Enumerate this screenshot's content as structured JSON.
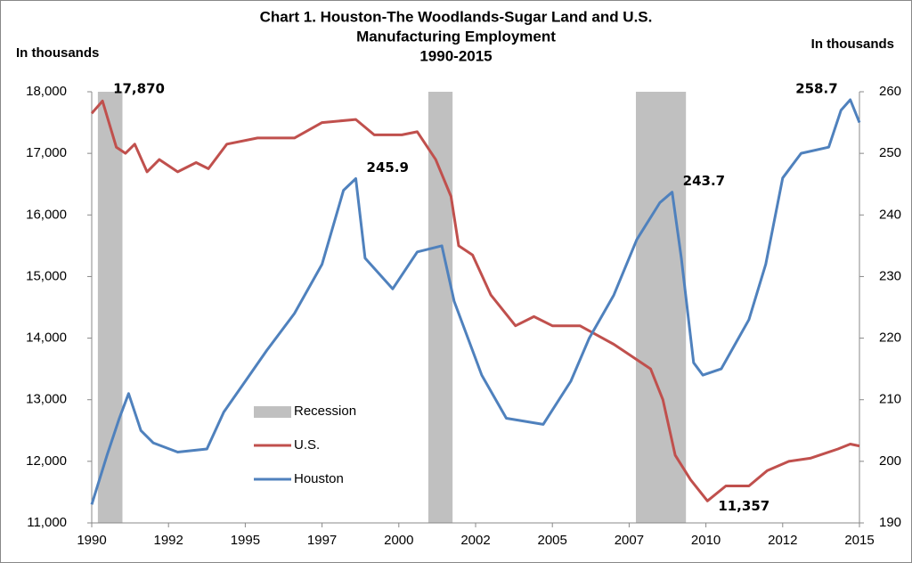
{
  "chart_data": {
    "type": "line",
    "title": [
      "Chart 1. Houston-The Woodlands-Sugar Land and U.S.",
      "Manufacturing Employment",
      "1990-2015"
    ],
    "ylabel": "In thousands",
    "y2label": "In thousands",
    "xlim": [
      1990,
      2015
    ],
    "xticks": [
      {
        "value": 1990,
        "label": "1990"
      },
      {
        "value": 1992.5,
        "label": "1992"
      },
      {
        "value": 1995,
        "label": "1995"
      },
      {
        "value": 1997.5,
        "label": "1997"
      },
      {
        "value": 2000,
        "label": "2000"
      },
      {
        "value": 2002.5,
        "label": "2002"
      },
      {
        "value": 2005,
        "label": "2005"
      },
      {
        "value": 2007.5,
        "label": "2007"
      },
      {
        "value": 2010,
        "label": "2010"
      },
      {
        "value": 2012.5,
        "label": "2012"
      },
      {
        "value": 2015,
        "label": "2015"
      }
    ],
    "ylim": [
      11000,
      18000
    ],
    "yticks": [
      {
        "value": 11000,
        "label": "11,000"
      },
      {
        "value": 12000,
        "label": "12,000"
      },
      {
        "value": 13000,
        "label": "13,000"
      },
      {
        "value": 14000,
        "label": "14,000"
      },
      {
        "value": 15000,
        "label": "15,000"
      },
      {
        "value": 16000,
        "label": "16,000"
      },
      {
        "value": 17000,
        "label": "17,000"
      },
      {
        "value": 18000,
        "label": "18,000"
      }
    ],
    "y2lim": [
      190,
      260
    ],
    "y2ticks": [
      190,
      200,
      210,
      220,
      230,
      240,
      250,
      260
    ],
    "recession": {
      "name": "Recession",
      "color": "#c0c0c0",
      "periods": [
        [
          1990.2,
          1991.0
        ],
        [
          2000.96,
          2001.75
        ],
        [
          2007.72,
          2009.35
        ]
      ]
    },
    "legend": "inside-lower-left",
    "series": [
      {
        "name": "U.S.",
        "color": "#c0504d",
        "axis": "y",
        "x": [
          1990,
          1990.35,
          1990.8,
          1991.1,
          1991.4,
          1991.8,
          1992.2,
          1992.8,
          1993.4,
          1993.8,
          1994.4,
          1995.4,
          1996.6,
          1997.5,
          1998.6,
          1999.2,
          2000.1,
          2000.6,
          2001.2,
          2001.7,
          2001.95,
          2002.4,
          2003,
          2003.8,
          2004.4,
          2005,
          2005.9,
          2007,
          2007.6,
          2008.2,
          2008.6,
          2009,
          2009.5,
          2010.05,
          2010.65,
          2011.4,
          2012,
          2012.7,
          2013.4,
          2014.3,
          2014.7,
          2015
        ],
        "values": [
          17650,
          17850,
          17100,
          17000,
          17150,
          16700,
          16900,
          16700,
          16850,
          16750,
          17150,
          17250,
          17250,
          17500,
          17550,
          17300,
          17300,
          17350,
          16900,
          16300,
          15500,
          15350,
          14700,
          14200,
          14350,
          14200,
          14200,
          13900,
          13700,
          13500,
          13000,
          12100,
          11700,
          11357,
          11600,
          11600,
          11850,
          12000,
          12050,
          12200,
          12280,
          12250
        ]
      },
      {
        "name": "Houston",
        "color": "#4f81bd",
        "axis": "y2",
        "x": [
          1990,
          1990.5,
          1990.9,
          1991.2,
          1991.6,
          1992,
          1992.8,
          1993.75,
          1994.3,
          1995,
          1995.7,
          1996.6,
          1997.5,
          1998.2,
          1998.6,
          1998.9,
          1999.8,
          2000.6,
          2001.4,
          2001.8,
          2002.7,
          2003.5,
          2004.7,
          2005.6,
          2006.2,
          2007,
          2007.75,
          2008.5,
          2008.9,
          2009.2,
          2009.6,
          2009.9,
          2010.5,
          2011.4,
          2011.95,
          2012.5,
          2013.1,
          2014,
          2014.4,
          2014.7,
          2015
        ],
        "values": [
          193,
          201,
          207,
          211,
          205,
          203,
          201.5,
          202,
          208,
          213,
          218,
          224,
          232,
          244,
          245.9,
          233,
          228,
          234,
          235,
          226,
          214,
          207,
          206,
          213,
          220,
          227,
          236,
          242,
          243.7,
          233,
          216,
          214,
          215,
          223,
          232,
          246,
          250,
          251,
          257,
          258.7,
          255
        ]
      }
    ],
    "annotations": [
      {
        "label": "17,870",
        "x": 1990.35,
        "value": 17870,
        "axis": "y"
      },
      {
        "label": "245.9",
        "x": 1998.6,
        "value": 245.9,
        "axis": "y2"
      },
      {
        "label": "243.7",
        "x": 2008.9,
        "value": 243.7,
        "axis": "y2"
      },
      {
        "label": "11,357",
        "x": 2010.05,
        "value": 11357,
        "axis": "y"
      },
      {
        "label": "258.7",
        "x": 2014.7,
        "value": 258.7,
        "axis": "y2"
      }
    ]
  }
}
